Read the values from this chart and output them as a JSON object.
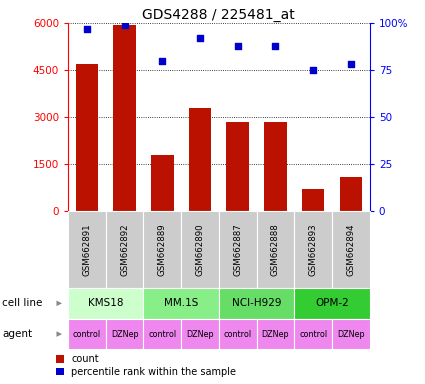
{
  "title": "GDS4288 / 225481_at",
  "samples": [
    "GSM662891",
    "GSM662892",
    "GSM662889",
    "GSM662890",
    "GSM662887",
    "GSM662888",
    "GSM662893",
    "GSM662894"
  ],
  "counts": [
    4700,
    5950,
    1800,
    3300,
    2850,
    2850,
    700,
    1100
  ],
  "percentile_ranks": [
    97,
    99,
    80,
    92,
    88,
    88,
    75,
    78
  ],
  "cell_lines": [
    {
      "name": "KMS18",
      "span": [
        0,
        2
      ],
      "color": "#ccffcc"
    },
    {
      "name": "MM.1S",
      "span": [
        2,
        4
      ],
      "color": "#88ee88"
    },
    {
      "name": "NCI-H929",
      "span": [
        4,
        6
      ],
      "color": "#66dd66"
    },
    {
      "name": "OPM-2",
      "span": [
        6,
        8
      ],
      "color": "#33cc33"
    }
  ],
  "agents": [
    "control",
    "DZNep",
    "control",
    "DZNep",
    "control",
    "DZNep",
    "control",
    "DZNep"
  ],
  "agent_color": "#ee88ee",
  "bar_color": "#bb1100",
  "dot_color": "#0000cc",
  "ylim_left": [
    0,
    6000
  ],
  "ylim_right": [
    0,
    100
  ],
  "yticks_left": [
    0,
    1500,
    3000,
    4500,
    6000
  ],
  "yticks_right": [
    0,
    25,
    50,
    75,
    100
  ],
  "ytick_right_labels": [
    "0",
    "25",
    "50",
    "75",
    "100%"
  ],
  "sample_box_color": "#cccccc",
  "background_color": "#ffffff"
}
